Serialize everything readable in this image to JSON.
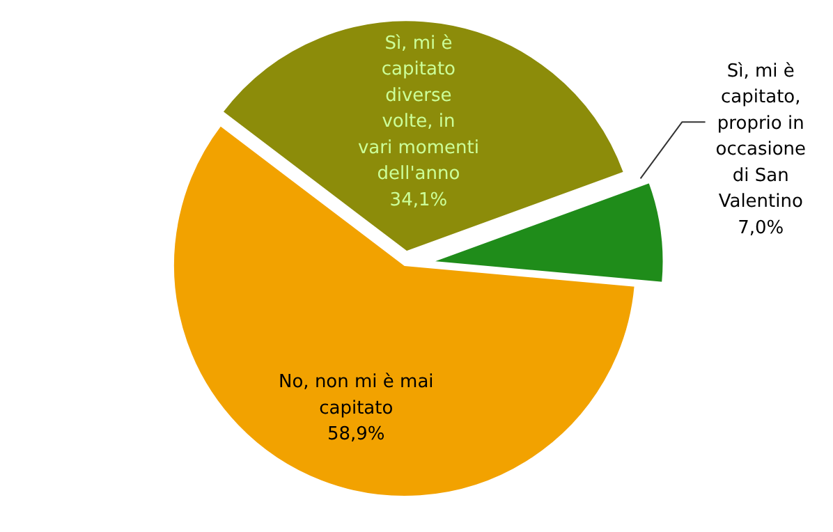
{
  "chart_data": {
    "type": "pie",
    "categories": [
      "Sì, mi è capitato, proprio in occasione di San Valentino",
      "Sì, mi è capitato diverse volte, in vari momenti dell'anno",
      "No, non mi è mai capitato"
    ],
    "values": [
      7.0,
      34.1,
      58.9
    ],
    "colors": [
      "#1f8c1a",
      "#8c8c0a",
      "#f2a200"
    ],
    "value_labels": [
      "7,0%",
      "34,1%",
      "58,9%"
    ],
    "legend": false
  }
}
